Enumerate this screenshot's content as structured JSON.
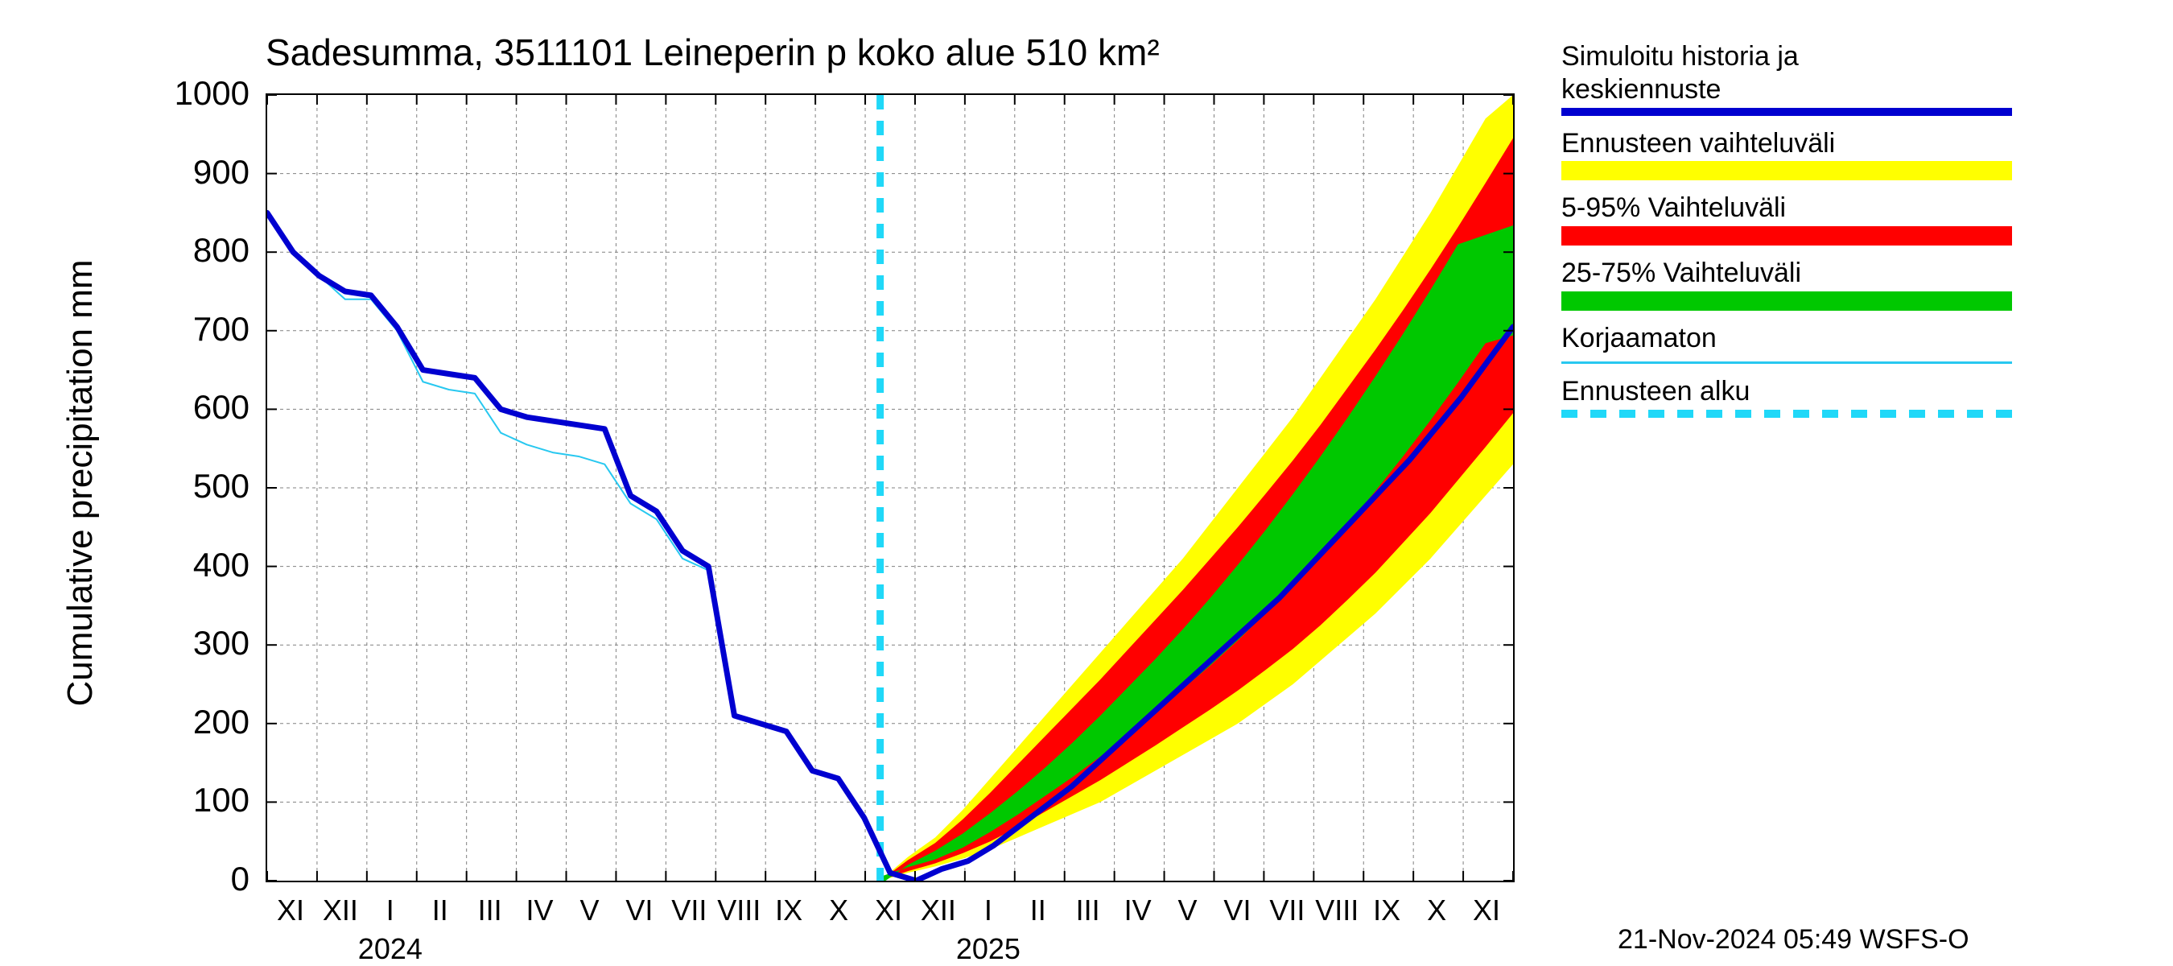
{
  "chart": {
    "type": "line-area-forecast",
    "title": "Sadesumma, 3511101 Leineperin p koko alue 510 km²",
    "ylabel": "Cumulative precipitation   mm",
    "title_fontsize": 46,
    "ylabel_fontsize": 44,
    "tick_fontsize": 42,
    "xtick_fontsize": 36,
    "legend_fontsize": 34,
    "background_color": "#ffffff",
    "grid_color": "#808080",
    "grid_dash": "4 4",
    "axis_color": "#000000",
    "ylim": [
      0,
      1000
    ],
    "ytick_step": 100,
    "yticks": [
      0,
      100,
      200,
      300,
      400,
      500,
      600,
      700,
      800,
      900,
      1000
    ],
    "x_months": [
      "XI",
      "XII",
      "I",
      "II",
      "III",
      "IV",
      "V",
      "VI",
      "VII",
      "VIII",
      "IX",
      "X",
      "XI",
      "XII",
      "I",
      "II",
      "III",
      "IV",
      "V",
      "VI",
      "VII",
      "VIII",
      "IX",
      "X",
      "XI"
    ],
    "x_year_labels": [
      {
        "label": "2024",
        "at_month_index": 2.0
      },
      {
        "label": "2025",
        "at_month_index": 14.0
      }
    ],
    "forecast_start_index": 12.3,
    "colors": {
      "median": "#0000d0",
      "uncorrected": "#28c8f0",
      "forecast_start_line": "#20d8f8",
      "band_outer": "#ffff00",
      "band_5_95": "#ff0000",
      "band_25_75": "#00c800"
    },
    "line_widths": {
      "median": 7,
      "uncorrected": 2,
      "forecast_start_line": 9
    },
    "series": {
      "median": [
        850,
        800,
        770,
        750,
        745,
        705,
        650,
        645,
        640,
        600,
        590,
        585,
        580,
        575,
        490,
        470,
        420,
        400,
        210,
        200,
        190,
        140,
        130,
        80,
        10,
        0,
        15,
        25,
        45,
        70,
        95,
        120,
        150,
        180,
        210,
        240,
        270,
        300,
        330,
        360,
        395,
        430,
        465,
        500,
        535,
        575,
        615,
        660,
        705
      ],
      "uncorrected": [
        850,
        800,
        770,
        740,
        740,
        700,
        635,
        625,
        620,
        570,
        555,
        545,
        540,
        530,
        480,
        460,
        410,
        395,
        210,
        200,
        190,
        140,
        130,
        75,
        10,
        0,
        15,
        25,
        45,
        70,
        95,
        120,
        150,
        180,
        210,
        240,
        270,
        300,
        330,
        360,
        395,
        430,
        465,
        500,
        535,
        575,
        615,
        660,
        705
      ],
      "band_outer_lo": [
        0,
        10,
        18,
        28,
        40,
        55,
        70,
        85,
        100,
        120,
        140,
        160,
        180,
        200,
        225,
        250,
        280,
        310,
        340,
        375,
        410,
        450,
        490,
        530
      ],
      "band_outer_hi": [
        0,
        30,
        55,
        90,
        130,
        170,
        210,
        250,
        290,
        330,
        370,
        410,
        455,
        500,
        545,
        590,
        640,
        690,
        740,
        795,
        850,
        910,
        970,
        1000
      ],
      "band_5_95_lo": [
        0,
        12,
        22,
        35,
        50,
        68,
        88,
        108,
        128,
        150,
        172,
        195,
        218,
        242,
        268,
        295,
        325,
        358,
        392,
        430,
        468,
        510,
        552,
        595
      ],
      "band_5_95_hi": [
        0,
        26,
        48,
        78,
        112,
        148,
        184,
        220,
        256,
        294,
        332,
        370,
        410,
        450,
        492,
        535,
        580,
        628,
        676,
        726,
        778,
        832,
        888,
        945
      ],
      "band_25_75_lo": [
        0,
        14,
        26,
        42,
        62,
        84,
        108,
        132,
        158,
        186,
        214,
        244,
        274,
        306,
        340,
        376,
        414,
        454,
        496,
        540,
        586,
        634,
        684,
        640
      ],
      "band_25_75_hi": [
        0,
        20,
        38,
        60,
        86,
        114,
        144,
        176,
        210,
        246,
        282,
        320,
        360,
        402,
        446,
        492,
        540,
        590,
        642,
        696,
        752,
        810,
        700,
        770
      ]
    }
  },
  "legend": {
    "items": [
      {
        "label": "Simuloitu historia ja\nkeskiennuste",
        "swatch_color": "#0000d0",
        "swatch_type": "line-thick"
      },
      {
        "label": "Ennusteen vaihteluväli",
        "swatch_color": "#ffff00",
        "swatch_type": "block"
      },
      {
        "label": "5-95% Vaihteluväli",
        "swatch_color": "#ff0000",
        "swatch_type": "block"
      },
      {
        "label": "25-75% Vaihteluväli",
        "swatch_color": "#00c800",
        "swatch_type": "block"
      },
      {
        "label": "Korjaamaton",
        "swatch_color": "#28c8f0",
        "swatch_type": "line-thin"
      },
      {
        "label": "Ennusteen alku",
        "swatch_color": "#20d8f8",
        "swatch_type": "line-dashed"
      }
    ]
  },
  "footer": "21-Nov-2024 05:49 WSFS-O"
}
